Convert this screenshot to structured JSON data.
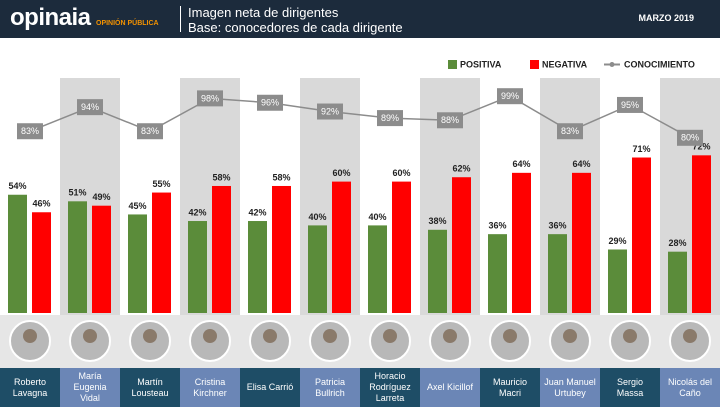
{
  "header": {
    "logo": "opinaia",
    "logo_subtitle": "OPINIÓN PÚBLICA",
    "date": "MARZO 2019"
  },
  "chart_data": {
    "type": "bar-line",
    "title": "Imagen neta de dirigentes",
    "subtitle": "Base: conocedores de cada dirigente",
    "categories": [
      "Roberto Lavagna",
      "María Eugenia Vidal",
      "Martín Lousteau",
      "Cristina Kirchner",
      "Elisa Carrió",
      "Patricia Bullrich",
      "Horacio Rodríguez Larreta",
      "Axel Kicillof",
      "Mauricio Macri",
      "Juan Manuel Urtubey",
      "Sergio Massa",
      "Nicolás del Caño"
    ],
    "ylim": [
      0,
      100
    ],
    "series": [
      {
        "name": "POSITIVA",
        "type": "bar",
        "color": "#5b8c3a",
        "values": [
          54,
          51,
          45,
          42,
          42,
          40,
          40,
          38,
          36,
          36,
          29,
          28
        ],
        "value_labels": [
          "54%",
          "51%",
          "45%",
          "42%",
          "42%",
          "40%",
          "40%",
          "38%",
          "36%",
          "36%",
          "29%",
          "28%"
        ]
      },
      {
        "name": "NEGATIVA",
        "type": "bar",
        "color": "#ff0000",
        "values": [
          46,
          49,
          55,
          58,
          58,
          60,
          60,
          62,
          64,
          64,
          71,
          72
        ],
        "value_labels": [
          "46%",
          "49%",
          "55%",
          "58%",
          "58%",
          "60%",
          "60%",
          "62%",
          "64%",
          "64%",
          "71%",
          "72%"
        ]
      },
      {
        "name": "CONOCIMIENTO",
        "type": "line",
        "color": "#8c8c8c",
        "values": [
          83,
          94,
          83,
          98,
          96,
          92,
          89,
          88,
          99,
          83,
          95,
          80
        ],
        "value_labels": [
          "83%",
          "94%",
          "83%",
          "98%",
          "96%",
          "92%",
          "89%",
          "88%",
          "99%",
          "83%",
          "95%",
          "80%"
        ]
      }
    ]
  }
}
